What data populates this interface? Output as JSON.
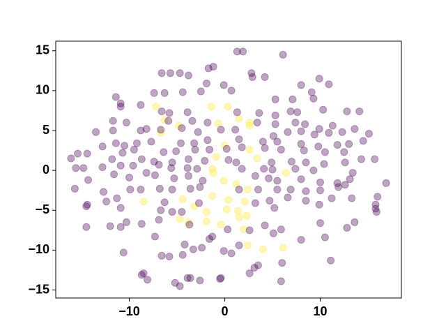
{
  "chart_data": {
    "type": "scatter",
    "xlim": [
      -17.7,
      18.5
    ],
    "ylim": [
      -16.0,
      16.2
    ],
    "xticks": [
      {
        "value": -10,
        "label": "−10"
      },
      0,
      10
    ],
    "yticks": [
      {
        "value": -15,
        "label": "−15"
      },
      {
        "value": -10,
        "label": "−10"
      },
      {
        "value": -5,
        "label": "−5"
      },
      0,
      5,
      10,
      15
    ],
    "series": [
      {
        "color": "#fde725",
        "x": [
          -7.2,
          -6.3,
          -1.4,
          0.3,
          -0.7,
          1.5,
          2.6,
          2.6,
          0.0,
          2.6,
          3.4,
          -1.3,
          -1.2,
          6.4,
          -0.1,
          1.2,
          2.4,
          -8.5,
          -4.4,
          -1.3,
          0.4,
          2.1,
          -3.2,
          -1.9,
          0.2,
          1.4,
          2.3,
          -4.7,
          -1.9,
          -0.4,
          1.5,
          2.0,
          -3.8,
          2.4,
          4.0,
          6.1,
          -4.8,
          -6.7,
          -0.9
        ],
        "y": [
          8.0,
          6.3,
          8.0,
          8.0,
          5.9,
          6.5,
          6.0,
          5.6,
          3.1,
          2.6,
          1.5,
          0.2,
          -0.3,
          -0.3,
          -1.3,
          -1.7,
          -2.4,
          -3.9,
          -3.6,
          -3.2,
          -3.7,
          -3.9,
          -4.5,
          -5.2,
          -4.9,
          -5.1,
          -5.7,
          -6.1,
          -6.4,
          -6.8,
          -5.9,
          -7.4,
          -6.5,
          -9.4,
          -9.9,
          -9.7,
          5.6,
          4.7,
          1.7
        ]
      },
      {
        "color": "#440154",
        "x": [
          1.3,
          1.9,
          6.1,
          -1.2,
          -1.7,
          2.8,
          2.9,
          -6.6,
          -5.7,
          -4.7,
          -3.8,
          -1.9,
          -0.1,
          0.7,
          4.2,
          9.9,
          10.9,
          8.0,
          -7.4,
          -6.3,
          -4.4,
          -2.5,
          -11.4,
          -8.8,
          -10.9,
          -10.9,
          5.3,
          7.1,
          9.3,
          10.3,
          12.8,
          14.1,
          9.1,
          6.9,
          7.6,
          5.3,
          3.6,
          1.3,
          -3.9,
          -5.8,
          -6.6,
          -11.7,
          -10.3,
          -5.9,
          -3.4,
          -1.8,
          3.4,
          5.3,
          7.4,
          8.4,
          9.9,
          11.3,
          13.6,
          15.1,
          -13.5,
          -11.7,
          -8.8,
          -8.2,
          -6.7,
          -4.5,
          -2.8,
          -0.4,
          1.1,
          5.1,
          6.6,
          8.0,
          9.4,
          10.9,
          12.3,
          14.5,
          -12.8,
          -11.4,
          -10.5,
          -9.2,
          -7.7,
          -4.6,
          -3.2,
          -1.8,
          1.5,
          4.0,
          5.5,
          8.0,
          9.8,
          11.8,
          13.0,
          -15.4,
          -14.4,
          -10.7,
          -9.5,
          -6.4,
          -5.1,
          -3.1,
          -1.6,
          0.2,
          1.8,
          4.2,
          5.9,
          8.3,
          10.5,
          12.5,
          -16.1,
          -11.8,
          -8.7,
          -7.4,
          -5.5,
          -3.8,
          -2.1,
          0.4,
          1.2,
          4.9,
          7.0,
          8.5,
          10.4,
          12.6,
          14.3,
          15.7,
          -15.6,
          -14.8,
          -12.8,
          -10.9,
          -9.6,
          -6.9,
          -5.6,
          -3.9,
          -2.9,
          1.8,
          4.1,
          5.0,
          7.4,
          9.3,
          13.4,
          -8.2,
          -11.6,
          -14.3,
          -10.0,
          -7.3,
          -5.3,
          -3.8,
          -2.3,
          3.2,
          4.6,
          5.5,
          8.0,
          10.0,
          11.8,
          13.1,
          16.9,
          -15.7,
          -12.7,
          -9.9,
          -8.8,
          -6.8,
          -5.5,
          -3.6,
          -2.6,
          1.5,
          3.5,
          5.5,
          6.9,
          8.5,
          10.0,
          11.9,
          12.6,
          16.0,
          15.8,
          -12.4,
          -14.4,
          -11.3,
          -6.3,
          -4.5,
          -2.7,
          3.2,
          4.7,
          6.6,
          8.5,
          11.2,
          13.3,
          -14.5,
          -10.9,
          -6.7,
          -5.5,
          5.2,
          9.9,
          15.8,
          15.9,
          -14.5,
          -10.3,
          -8.7,
          -3.7,
          -6.9,
          -1.3,
          0.3,
          4.2,
          5.9,
          10.0,
          12.8,
          13.6,
          -12.0,
          -10.9,
          -7.3,
          -1.6,
          2.6,
          5.1,
          8.0,
          10.5,
          -4.2,
          -3.3,
          -2.4,
          -10.6,
          -6.6,
          -5.8,
          -4.4,
          -0.1,
          1.5,
          11.1,
          0.7,
          6.0,
          3.1,
          3.5,
          -8.5,
          -8.1,
          -8.7,
          -3.6,
          -0.5,
          -2.6,
          2.6,
          5.9,
          -5.2,
          -4.7,
          -3.9,
          -0.4
        ],
        "y": [
          14.9,
          14.9,
          14.5,
          13.0,
          12.8,
          12.2,
          11.7,
          12.2,
          12.2,
          12.2,
          11.9,
          10.9,
          10.7,
          10.0,
          11.7,
          11.5,
          10.8,
          10.7,
          9.7,
          9.7,
          9.8,
          9.9,
          9.2,
          8.2,
          8.4,
          8.0,
          8.9,
          8.9,
          9.0,
          7.6,
          7.4,
          7.4,
          9.8,
          7.4,
          7.3,
          6.9,
          7.2,
          7.3,
          7.3,
          7.2,
          7.4,
          6.2,
          6.0,
          6.2,
          6.2,
          6.0,
          6.0,
          5.8,
          6.0,
          5.8,
          5.2,
          5.6,
          5.2,
          4.6,
          4.8,
          5.0,
          5.0,
          5.2,
          5.1,
          5.3,
          4.8,
          5.1,
          5.1,
          4.3,
          4.8,
          4.9,
          4.5,
          4.7,
          4.8,
          3.7,
          3.0,
          3.4,
          3.1,
          3.4,
          3.6,
          3.4,
          3.4,
          3.8,
          3.9,
          3.6,
          3.6,
          3.3,
          3.0,
          3.2,
          3.3,
          2.1,
          2.1,
          2.2,
          2.6,
          2.3,
          2.4,
          2.6,
          2.6,
          2.7,
          2.9,
          2.8,
          2.6,
          2.5,
          2.3,
          2.3,
          1.5,
          1.4,
          1.4,
          1.1,
          1.0,
          1.4,
          1.2,
          1.3,
          1.0,
          1.0,
          1.1,
          1.0,
          0.8,
          1.0,
          1.4,
          1.4,
          0.3,
          0.3,
          0.4,
          0.6,
          0.6,
          0.7,
          0.3,
          0.3,
          0.2,
          0.2,
          0.2,
          0.1,
          0.2,
          0.0,
          -0.3,
          -0.3,
          -0.5,
          -1.2,
          -0.9,
          -0.6,
          -1.0,
          -0.7,
          -1.3,
          -0.7,
          -1.0,
          -1.3,
          -1.1,
          -1.5,
          -1.6,
          -1.1,
          -1.6,
          -2.3,
          -2.7,
          -2.4,
          -2.4,
          -2.3,
          -2.4,
          -2.3,
          -2.1,
          -2.4,
          -2.4,
          -2.4,
          -2.4,
          -2.6,
          -2.5,
          -2.1,
          -1.8,
          -3.3,
          -4.3,
          -3.9,
          -4.3,
          -3.5,
          -4.0,
          -5.2,
          -4.1,
          -4.1,
          -3.8,
          -3.4,
          -3.8,
          -3.5,
          -3.5,
          -4.5,
          -4.7,
          -5.0,
          -5.2,
          -4.7,
          -4.3,
          -4.8,
          -5.2,
          -7.1,
          -6.5,
          -6.7,
          -6.8,
          -6.2,
          -8.3,
          -7.4,
          -6.9,
          -7.4,
          -6.6,
          -7.2,
          -6.5,
          -7.0,
          -7.1,
          -8.3,
          -8.6,
          -7.5,
          -7.9,
          -8.7,
          -8.4,
          -9.3,
          -9.9,
          -9.7,
          -10.3,
          -10.7,
          -10.8,
          -10.6,
          -10.1,
          -9.4,
          -11.3,
          -10.4,
          -11.6,
          -12.2,
          -11.9,
          -12.9,
          -13.7,
          -13.1,
          -13.5,
          -13.6,
          -13.8,
          -12.9,
          -13.9,
          -14.1,
          -14.5,
          -13.5,
          -13.5
        ]
      }
    ]
  }
}
